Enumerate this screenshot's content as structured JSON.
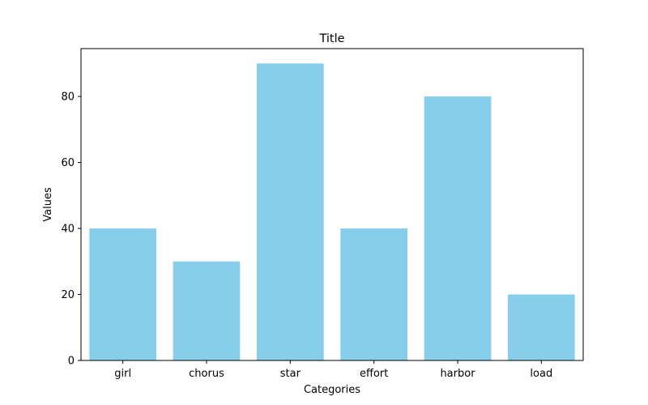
{
  "chart_data": {
    "type": "bar",
    "title": "Title",
    "xlabel": "Categories",
    "ylabel": "Values",
    "categories": [
      "girl",
      "chorus",
      "star",
      "effort",
      "harbor",
      "load"
    ],
    "values": [
      40,
      30,
      90,
      40,
      80,
      20
    ],
    "ylim": [
      0,
      94.5
    ],
    "yticks": [
      0,
      20,
      40,
      60,
      80
    ],
    "bar_color": "#87ceeb",
    "grid": false,
    "legend": "none"
  }
}
